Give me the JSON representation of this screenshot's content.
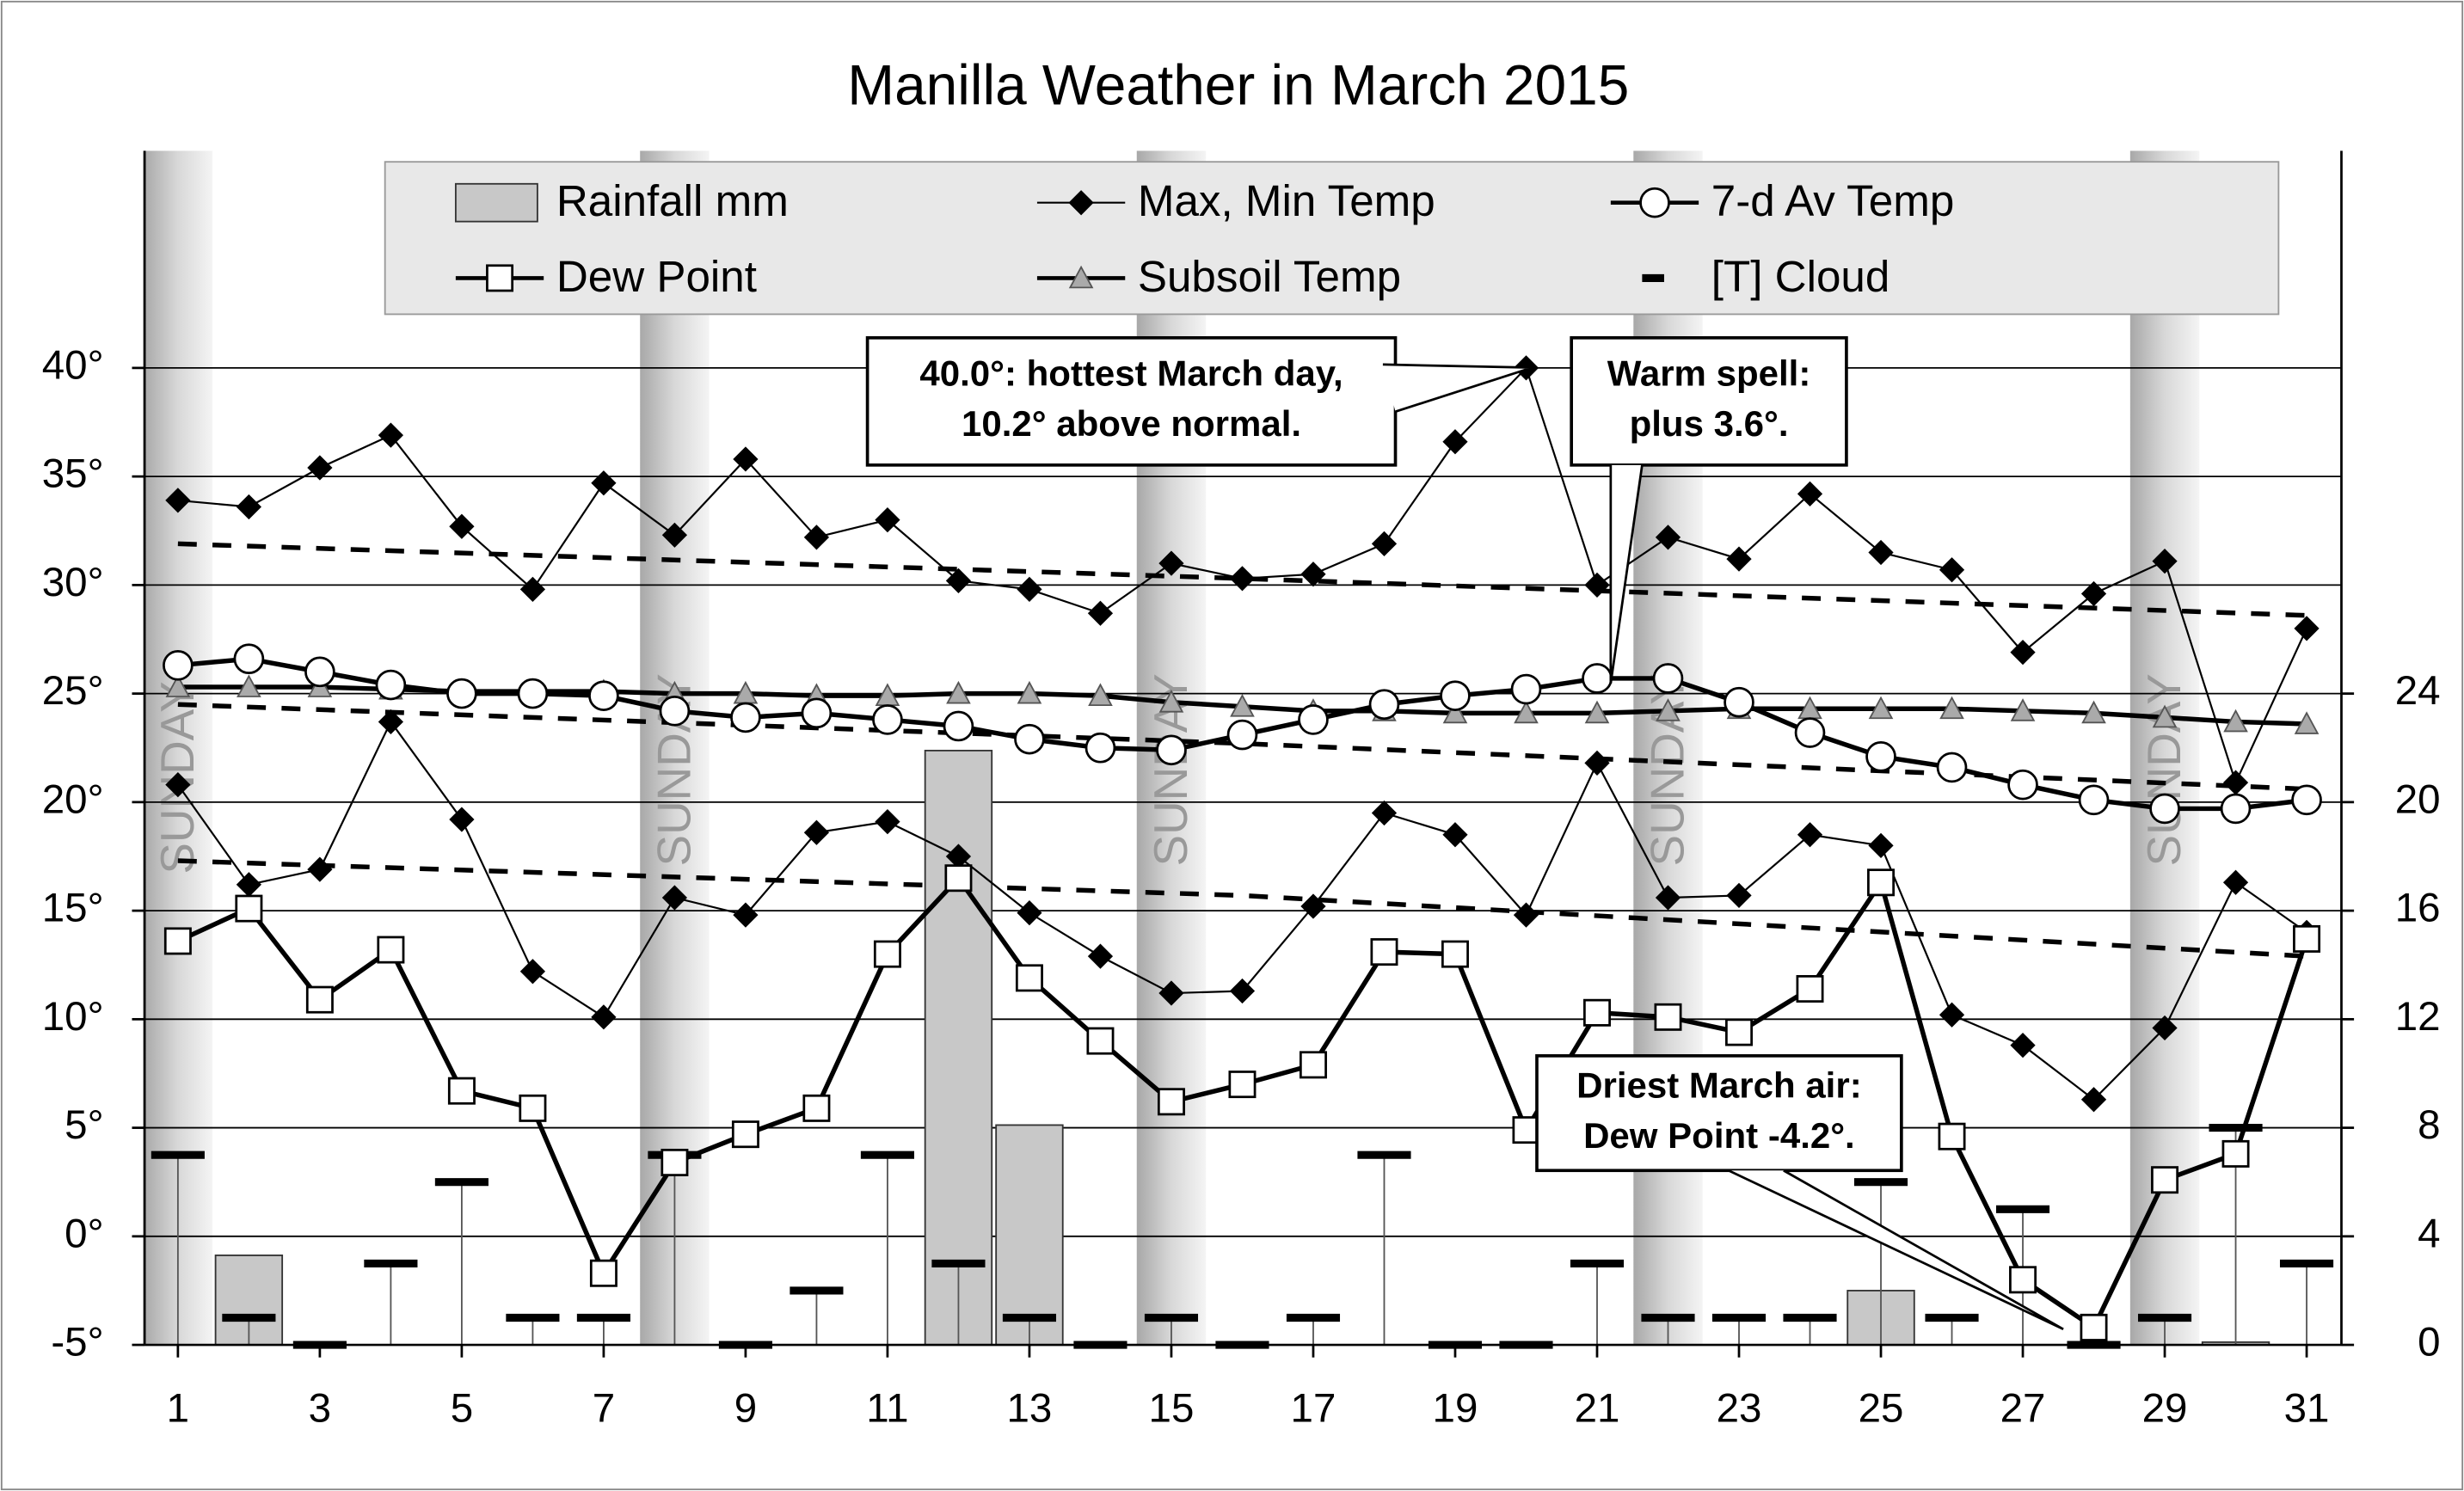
{
  "chart_data": {
    "type": "combo",
    "title": "Manilla Weather in March 2015",
    "x": [
      1,
      2,
      3,
      4,
      5,
      6,
      7,
      8,
      9,
      10,
      11,
      12,
      13,
      14,
      15,
      16,
      17,
      18,
      19,
      20,
      21,
      22,
      23,
      24,
      25,
      26,
      27,
      28,
      29,
      30,
      31
    ],
    "xlim": [
      0.53,
      31.49
    ],
    "xticks": [
      1,
      3,
      5,
      7,
      9,
      11,
      13,
      15,
      17,
      19,
      21,
      23,
      25,
      27,
      29,
      31
    ],
    "ylim": [
      -5,
      50
    ],
    "yticks": [
      {
        "value": -5,
        "label": "-5°"
      },
      {
        "value": 0,
        "label": "0°"
      },
      {
        "value": 5,
        "label": "5°"
      },
      {
        "value": 10,
        "label": "10°"
      },
      {
        "value": 15,
        "label": "15°"
      },
      {
        "value": 20,
        "label": "20°"
      },
      {
        "value": 25,
        "label": "25°"
      },
      {
        "value": 30,
        "label": "30°"
      },
      {
        "value": 35,
        "label": "35°"
      },
      {
        "value": 40,
        "label": "40°"
      }
    ],
    "y2lim": [
      0,
      44
    ],
    "y2ticks": [
      0,
      4,
      8,
      12,
      16,
      20,
      24
    ],
    "grid": true,
    "sundays": {
      "days": [
        1,
        8,
        15,
        22,
        29
      ],
      "label": "SUNDAY"
    },
    "series": [
      {
        "name": "Rainfall mm",
        "type": "bar",
        "axis": "y2",
        "color": "#c8c8c8",
        "values": [
          0,
          3.3,
          0,
          0,
          0,
          0,
          0,
          0,
          0,
          0,
          0,
          21.9,
          8.1,
          0,
          0,
          0,
          0,
          0,
          0,
          0,
          0,
          0,
          0,
          0,
          2.0,
          0,
          0,
          0,
          0,
          0.1,
          0
        ]
      },
      {
        "name": "Max, Min Temp",
        "type": "maxmin",
        "marker": "diamond",
        "color": "#000000",
        "values": [
          33.9,
          33.6,
          35.4,
          36.9,
          32.7,
          29.8,
          34.7,
          32.3,
          35.8,
          32.2,
          33.0,
          30.2,
          29.8,
          28.7,
          31.0,
          30.3,
          30.5,
          31.9,
          36.6,
          40.0,
          30.0,
          32.2,
          31.2,
          34.2,
          31.5,
          30.7,
          26.9,
          29.6,
          31.1,
          20.9,
          28.0
        ],
        "min_values": [
          20.8,
          16.2,
          16.9,
          23.7,
          19.2,
          12.2,
          10.1,
          15.6,
          14.8,
          18.6,
          19.1,
          17.5,
          14.9,
          12.9,
          11.2,
          11.3,
          15.2,
          19.5,
          18.5,
          14.8,
          21.8,
          15.6,
          15.7,
          18.5,
          18.0,
          10.2,
          8.8,
          6.3,
          9.6,
          16.3,
          14.0
        ]
      },
      {
        "name": "7-d Av Temp",
        "type": "line",
        "marker": "circle",
        "color": "#000000",
        "values": [
          26.3,
          26.6,
          26.0,
          25.4,
          25.0,
          25.0,
          24.9,
          24.2,
          23.9,
          24.1,
          23.8,
          23.5,
          22.9,
          22.5,
          22.4,
          23.1,
          23.8,
          24.5,
          24.9,
          25.2,
          25.7,
          25.7,
          24.6,
          23.2,
          22.1,
          21.6,
          20.8,
          20.1,
          19.7,
          19.7,
          20.1
        ]
      },
      {
        "name": "Dew Point",
        "type": "line",
        "marker": "square",
        "color": "#000000",
        "values": [
          13.6,
          15.1,
          10.9,
          13.2,
          6.7,
          5.9,
          -1.7,
          3.4,
          4.7,
          5.9,
          13.0,
          16.5,
          11.9,
          9.0,
          6.2,
          7.0,
          7.9,
          13.1,
          13.0,
          4.9,
          10.3,
          10.1,
          9.4,
          11.4,
          16.3,
          4.6,
          -2.0,
          -4.2,
          2.6,
          3.8,
          13.7
        ]
      },
      {
        "name": "Subsoil Temp",
        "type": "line",
        "marker": "triangle",
        "color": "#000000",
        "values": [
          25.3,
          25.3,
          25.3,
          25.2,
          25.1,
          25.1,
          25.1,
          25.0,
          25.0,
          24.9,
          24.9,
          25.0,
          25.0,
          24.9,
          24.6,
          24.4,
          24.2,
          24.2,
          24.1,
          24.1,
          24.1,
          24.2,
          24.3,
          24.3,
          24.3,
          24.3,
          24.2,
          24.1,
          23.9,
          23.7,
          23.6
        ]
      },
      {
        "name": "[T] Cloud",
        "type": "dash",
        "axis": "y2",
        "color": "#000000",
        "values": [
          7,
          1,
          0,
          3,
          6,
          1,
          1,
          7,
          0,
          2,
          7,
          3,
          1,
          0,
          1,
          0,
          1,
          7,
          0,
          0,
          3,
          1,
          1,
          1,
          6,
          1,
          5,
          0,
          1,
          8,
          3
        ]
      }
    ],
    "normals": [
      {
        "x": [
          1,
          16,
          31
        ],
        "values": [
          31.9,
          30.3,
          28.6
        ]
      },
      {
        "x": [
          1,
          16,
          31
        ],
        "values": [
          24.5,
          22.7,
          20.6
        ]
      },
      {
        "x": [
          1,
          16,
          31
        ],
        "values": [
          17.3,
          15.7,
          12.9
        ]
      }
    ],
    "annotations": [
      {
        "lines": [
          "40.0°: hottest March day,",
          "10.2° above normal."
        ]
      },
      {
        "lines": [
          "Warm spell:",
          "plus 3.6°."
        ]
      },
      {
        "lines": [
          "Driest March air:",
          "Dew Point -4.2°."
        ]
      }
    ]
  }
}
